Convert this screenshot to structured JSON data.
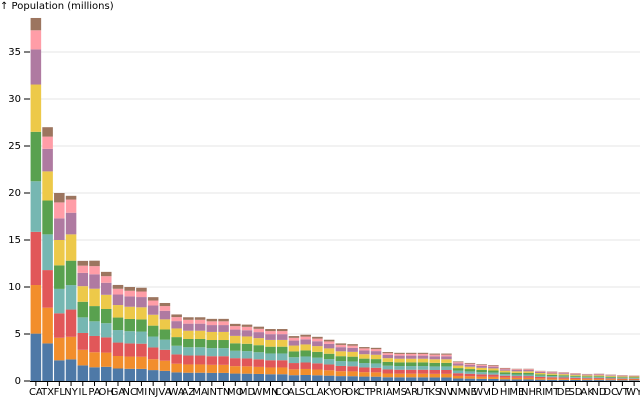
{
  "chart_data": {
    "type": "stacked-bar",
    "y_label": "↑ Population (millions)",
    "categories": [
      "CA",
      "TX",
      "FL",
      "NY",
      "IL",
      "PA",
      "OH",
      "GA",
      "NC",
      "MI",
      "NJ",
      "VA",
      "WA",
      "AZ",
      "MA",
      "IN",
      "TN",
      "MO",
      "MD",
      "WI",
      "MN",
      "CO",
      "AL",
      "SC",
      "LA",
      "KY",
      "OR",
      "OK",
      "CT",
      "PR",
      "IA",
      "MS",
      "AR",
      "UT",
      "KS",
      "NV",
      "NM",
      "NE",
      "WV",
      "ID",
      "HI",
      "ME",
      "NH",
      "RI",
      "MT",
      "DE",
      "SD",
      "AK",
      "ND",
      "DC",
      "VT",
      "WY"
    ],
    "ylim": [
      0,
      40
    ],
    "yticks": [
      0,
      5,
      10,
      15,
      20,
      25,
      30,
      35
    ],
    "grid": true,
    "series": [
      {
        "color": "#4e79a7",
        "values": [
          5.04,
          4.0,
          2.2,
          2.3,
          1.66,
          1.46,
          1.51,
          1.33,
          1.3,
          1.29,
          1.16,
          1.08,
          0.92,
          0.88,
          0.88,
          0.86,
          0.86,
          0.79,
          0.78,
          0.75,
          0.72,
          0.72,
          0.62,
          0.64,
          0.61,
          0.57,
          0.52,
          0.51,
          0.47,
          0.46,
          0.4,
          0.39,
          0.39,
          0.39,
          0.38,
          0.38,
          0.27,
          0.25,
          0.23,
          0.22,
          0.18,
          0.17,
          0.17,
          0.14,
          0.13,
          0.12,
          0.11,
          0.1,
          0.1,
          0.09,
          0.08,
          0.08
        ]
      },
      {
        "color": "#f28e2c",
        "values": [
          5.17,
          3.8,
          2.4,
          2.4,
          1.66,
          1.6,
          1.51,
          1.33,
          1.3,
          1.29,
          1.16,
          1.08,
          0.92,
          0.88,
          0.88,
          0.86,
          0.86,
          0.79,
          0.78,
          0.75,
          0.72,
          0.72,
          0.62,
          0.64,
          0.61,
          0.57,
          0.52,
          0.51,
          0.47,
          0.46,
          0.4,
          0.39,
          0.39,
          0.39,
          0.38,
          0.38,
          0.27,
          0.25,
          0.23,
          0.22,
          0.18,
          0.17,
          0.17,
          0.14,
          0.13,
          0.12,
          0.11,
          0.1,
          0.1,
          0.09,
          0.08,
          0.08
        ]
      },
      {
        "color": "#e15759",
        "values": [
          5.66,
          4.0,
          2.6,
          2.9,
          1.79,
          1.73,
          1.62,
          1.43,
          1.4,
          1.39,
          1.25,
          1.16,
          0.99,
          0.95,
          0.95,
          0.92,
          0.92,
          0.85,
          0.84,
          0.81,
          0.77,
          0.77,
          0.67,
          0.69,
          0.66,
          0.62,
          0.56,
          0.55,
          0.5,
          0.49,
          0.43,
          0.42,
          0.42,
          0.42,
          0.41,
          0.41,
          0.29,
          0.27,
          0.25,
          0.24,
          0.2,
          0.18,
          0.18,
          0.15,
          0.14,
          0.13,
          0.12,
          0.1,
          0.11,
          0.1,
          0.09,
          0.08
        ]
      },
      {
        "color": "#76b7b2",
        "values": [
          5.38,
          3.8,
          2.6,
          2.6,
          1.66,
          1.56,
          1.51,
          1.33,
          1.3,
          1.29,
          1.16,
          1.08,
          0.92,
          0.88,
          0.88,
          0.86,
          0.86,
          0.79,
          0.78,
          0.75,
          0.72,
          0.72,
          0.62,
          0.64,
          0.61,
          0.57,
          0.52,
          0.51,
          0.47,
          0.46,
          0.4,
          0.39,
          0.39,
          0.39,
          0.38,
          0.38,
          0.27,
          0.25,
          0.23,
          0.22,
          0.18,
          0.17,
          0.17,
          0.14,
          0.13,
          0.12,
          0.11,
          0.1,
          0.1,
          0.09,
          0.08,
          0.08
        ]
      },
      {
        "color": "#59a14f",
        "values": [
          5.26,
          3.6,
          2.5,
          2.6,
          1.66,
          1.62,
          1.51,
          1.33,
          1.3,
          1.29,
          1.16,
          1.08,
          0.92,
          0.88,
          0.88,
          0.86,
          0.86,
          0.79,
          0.78,
          0.75,
          0.72,
          0.72,
          0.62,
          0.64,
          0.61,
          0.57,
          0.52,
          0.51,
          0.47,
          0.46,
          0.4,
          0.39,
          0.39,
          0.39,
          0.38,
          0.38,
          0.27,
          0.25,
          0.23,
          0.22,
          0.18,
          0.17,
          0.17,
          0.14,
          0.13,
          0.12,
          0.11,
          0.1,
          0.1,
          0.09,
          0.08,
          0.08
        ]
      },
      {
        "color": "#edc949",
        "values": [
          5.03,
          3.1,
          2.7,
          2.8,
          1.66,
          1.85,
          1.51,
          1.33,
          1.3,
          1.29,
          1.16,
          1.08,
          0.92,
          0.88,
          0.88,
          0.86,
          0.86,
          0.79,
          0.78,
          0.75,
          0.72,
          0.72,
          0.62,
          0.64,
          0.61,
          0.57,
          0.52,
          0.51,
          0.47,
          0.46,
          0.4,
          0.39,
          0.39,
          0.39,
          0.38,
          0.38,
          0.27,
          0.25,
          0.23,
          0.22,
          0.18,
          0.17,
          0.17,
          0.14,
          0.13,
          0.12,
          0.11,
          0.1,
          0.1,
          0.09,
          0.08,
          0.08
        ]
      },
      {
        "color": "#af7aa1",
        "values": [
          3.74,
          2.4,
          2.3,
          2.3,
          1.41,
          1.53,
          1.28,
          1.12,
          1.1,
          1.09,
          0.98,
          0.91,
          0.78,
          0.75,
          0.75,
          0.73,
          0.73,
          0.67,
          0.66,
          0.64,
          0.61,
          0.61,
          0.53,
          0.54,
          0.52,
          0.48,
          0.44,
          0.43,
          0.4,
          0.39,
          0.34,
          0.33,
          0.33,
          0.33,
          0.32,
          0.32,
          0.23,
          0.21,
          0.2,
          0.19,
          0.15,
          0.14,
          0.14,
          0.12,
          0.11,
          0.1,
          0.09,
          0.08,
          0.08,
          0.07,
          0.07,
          0.06
        ]
      },
      {
        "color": "#ff9da7",
        "values": [
          2.03,
          1.3,
          1.7,
          1.4,
          0.77,
          0.87,
          0.7,
          0.61,
          0.6,
          0.59,
          0.53,
          0.5,
          0.43,
          0.41,
          0.41,
          0.4,
          0.4,
          0.37,
          0.36,
          0.35,
          0.33,
          0.33,
          0.29,
          0.29,
          0.28,
          0.26,
          0.24,
          0.23,
          0.22,
          0.21,
          0.19,
          0.18,
          0.18,
          0.18,
          0.17,
          0.17,
          0.13,
          0.11,
          0.11,
          0.1,
          0.08,
          0.08,
          0.08,
          0.07,
          0.06,
          0.06,
          0.05,
          0.04,
          0.05,
          0.04,
          0.04,
          0.03
        ]
      },
      {
        "color": "#9c755f",
        "values": [
          1.31,
          1.0,
          1.0,
          0.4,
          0.51,
          0.58,
          0.46,
          0.41,
          0.4,
          0.4,
          0.36,
          0.33,
          0.28,
          0.27,
          0.27,
          0.26,
          0.26,
          0.24,
          0.24,
          0.23,
          0.22,
          0.22,
          0.19,
          0.2,
          0.19,
          0.18,
          0.16,
          0.16,
          0.14,
          0.14,
          0.12,
          0.12,
          0.12,
          0.12,
          0.12,
          0.12,
          0.08,
          0.08,
          0.07,
          0.07,
          0.06,
          0.05,
          0.05,
          0.04,
          0.04,
          0.04,
          0.03,
          0.03,
          0.03,
          0.03,
          0.03,
          0.02
        ]
      }
    ]
  }
}
